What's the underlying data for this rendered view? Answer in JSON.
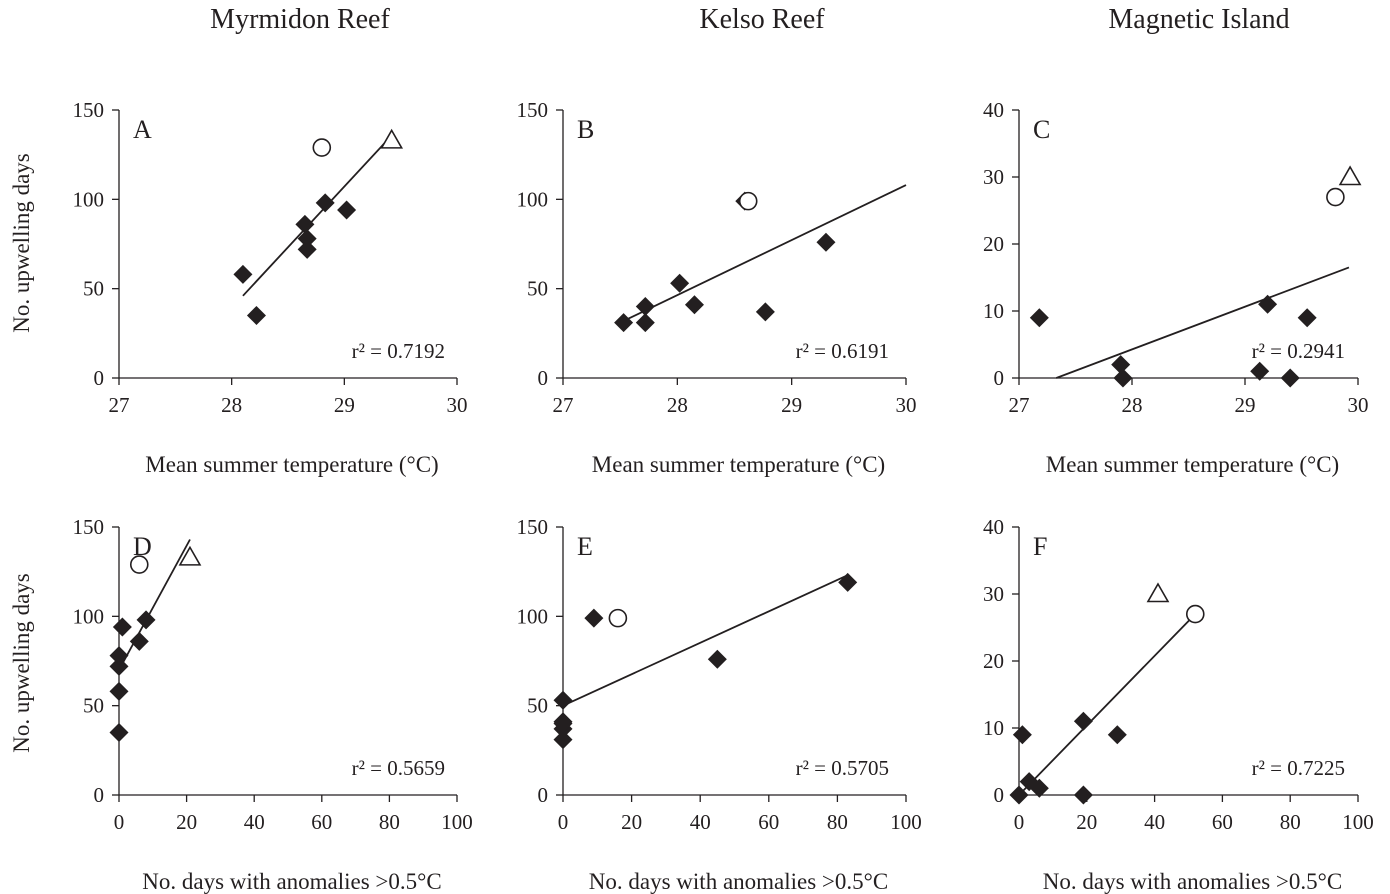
{
  "column_titles": [
    "Myrmidon Reef",
    "Kelso Reef",
    "Magnetic Island"
  ],
  "y_axis_label": "No. upwelling days",
  "chart_data": [
    {
      "type": "scatter",
      "panel": "A",
      "column": 0,
      "row": 0,
      "xlabel": "Mean summer  temperature (°C)",
      "xlim": [
        27,
        30
      ],
      "xticks": [
        27,
        28,
        29,
        30
      ],
      "ylim": [
        0,
        150
      ],
      "yticks": [
        0,
        50,
        100,
        150
      ],
      "r2_label": "r² = 0.7192",
      "points": [
        {
          "x": 28.1,
          "y": 58,
          "marker": "diamond"
        },
        {
          "x": 28.22,
          "y": 35,
          "marker": "diamond"
        },
        {
          "x": 28.65,
          "y": 86,
          "marker": "diamond"
        },
        {
          "x": 28.67,
          "y": 78,
          "marker": "diamond"
        },
        {
          "x": 28.67,
          "y": 72,
          "marker": "diamond"
        },
        {
          "x": 28.83,
          "y": 98,
          "marker": "diamond"
        },
        {
          "x": 29.02,
          "y": 94,
          "marker": "diamond"
        },
        {
          "x": 28.8,
          "y": 129,
          "marker": "circle"
        },
        {
          "x": 29.42,
          "y": 133,
          "marker": "triangle"
        }
      ],
      "fit": {
        "x1": 28.1,
        "y1": 46,
        "x2": 29.38,
        "y2": 133
      }
    },
    {
      "type": "scatter",
      "panel": "B",
      "column": 1,
      "row": 0,
      "xlabel": "Mean summer  temperature (°C)",
      "xlim": [
        27,
        30
      ],
      "xticks": [
        27,
        28,
        29,
        30
      ],
      "ylim": [
        0,
        150
      ],
      "yticks": [
        0,
        50,
        100,
        150
      ],
      "r2_label": "r² = 0.6191",
      "points": [
        {
          "x": 27.53,
          "y": 31,
          "marker": "diamond"
        },
        {
          "x": 27.72,
          "y": 31,
          "marker": "diamond"
        },
        {
          "x": 27.72,
          "y": 40,
          "marker": "diamond"
        },
        {
          "x": 28.02,
          "y": 53,
          "marker": "diamond"
        },
        {
          "x": 28.15,
          "y": 41,
          "marker": "diamond"
        },
        {
          "x": 28.59,
          "y": 99,
          "marker": "diamond"
        },
        {
          "x": 28.77,
          "y": 37,
          "marker": "diamond"
        },
        {
          "x": 29.3,
          "y": 76,
          "marker": "diamond"
        },
        {
          "x": 28.62,
          "y": 99,
          "marker": "circle"
        }
      ],
      "fit": {
        "x1": 27.5,
        "y1": 31,
        "x2": 30,
        "y2": 108
      }
    },
    {
      "type": "scatter",
      "panel": "C",
      "column": 2,
      "row": 0,
      "xlabel": "Mean summer  temperature (°C)",
      "xlim": [
        27,
        30
      ],
      "xticks": [
        27,
        28,
        29,
        30
      ],
      "ylim": [
        0,
        40
      ],
      "yticks": [
        0,
        10,
        20,
        30,
        40
      ],
      "r2_label": "r² = 0.2941",
      "points": [
        {
          "x": 27.18,
          "y": 9,
          "marker": "diamond"
        },
        {
          "x": 27.9,
          "y": 2,
          "marker": "diamond"
        },
        {
          "x": 27.92,
          "y": 0,
          "marker": "diamond"
        },
        {
          "x": 29.13,
          "y": 1,
          "marker": "diamond"
        },
        {
          "x": 29.2,
          "y": 11,
          "marker": "diamond"
        },
        {
          "x": 29.4,
          "y": 0,
          "marker": "diamond"
        },
        {
          "x": 29.55,
          "y": 9,
          "marker": "diamond"
        },
        {
          "x": 29.8,
          "y": 27,
          "marker": "circle"
        },
        {
          "x": 29.93,
          "y": 30,
          "marker": "triangle"
        }
      ],
      "fit": {
        "x1": 27.33,
        "y1": 0,
        "x2": 29.92,
        "y2": 16.5
      }
    },
    {
      "type": "scatter",
      "panel": "D",
      "column": 0,
      "row": 1,
      "xlabel": "No. days with  anomalies >0.5°C",
      "xlim": [
        0,
        100
      ],
      "xticks": [
        0,
        20,
        40,
        60,
        80,
        100
      ],
      "ylim": [
        0,
        150
      ],
      "yticks": [
        0,
        50,
        100,
        150
      ],
      "r2_label": "r² = 0.5659",
      "points": [
        {
          "x": 0,
          "y": 35,
          "marker": "diamond"
        },
        {
          "x": 0,
          "y": 58,
          "marker": "diamond"
        },
        {
          "x": 0,
          "y": 72,
          "marker": "diamond"
        },
        {
          "x": 0,
          "y": 78,
          "marker": "diamond"
        },
        {
          "x": 1,
          "y": 94,
          "marker": "diamond"
        },
        {
          "x": 6,
          "y": 86,
          "marker": "diamond"
        },
        {
          "x": 8,
          "y": 98,
          "marker": "diamond"
        },
        {
          "x": 6,
          "y": 129,
          "marker": "circle"
        },
        {
          "x": 21,
          "y": 133,
          "marker": "triangle"
        }
      ],
      "fit": {
        "x1": 0,
        "y1": 70,
        "x2": 21,
        "y2": 143
      }
    },
    {
      "type": "scatter",
      "panel": "E",
      "column": 1,
      "row": 1,
      "xlabel": "No. days with  anomalies >0.5°C",
      "xlim": [
        0,
        100
      ],
      "xticks": [
        0,
        20,
        40,
        60,
        80,
        100
      ],
      "ylim": [
        0,
        150
      ],
      "yticks": [
        0,
        50,
        100,
        150
      ],
      "r2_label": "r² = 0.5705",
      "points": [
        {
          "x": 0,
          "y": 31,
          "marker": "diamond"
        },
        {
          "x": 0,
          "y": 37,
          "marker": "diamond"
        },
        {
          "x": 0,
          "y": 40,
          "marker": "diamond"
        },
        {
          "x": 0,
          "y": 41,
          "marker": "diamond"
        },
        {
          "x": 0,
          "y": 53,
          "marker": "diamond"
        },
        {
          "x": 9,
          "y": 99,
          "marker": "diamond"
        },
        {
          "x": 45,
          "y": 76,
          "marker": "diamond"
        },
        {
          "x": 83,
          "y": 119,
          "marker": "diamond"
        },
        {
          "x": 16,
          "y": 99,
          "marker": "circle"
        }
      ],
      "fit": {
        "x1": 0,
        "y1": 50,
        "x2": 83,
        "y2": 123
      }
    },
    {
      "type": "scatter",
      "panel": "F",
      "column": 2,
      "row": 1,
      "xlabel": "No. days with anomalies >0.5°C",
      "xlim": [
        0,
        100
      ],
      "xticks": [
        0,
        20,
        40,
        60,
        80,
        100
      ],
      "ylim": [
        0,
        40
      ],
      "yticks": [
        0,
        10,
        20,
        30,
        40
      ],
      "r2_label": "r² = 0.7225",
      "points": [
        {
          "x": 0,
          "y": 0,
          "marker": "diamond"
        },
        {
          "x": 1,
          "y": 9,
          "marker": "diamond"
        },
        {
          "x": 3,
          "y": 2,
          "marker": "diamond"
        },
        {
          "x": 6,
          "y": 1,
          "marker": "diamond"
        },
        {
          "x": 19,
          "y": 11,
          "marker": "diamond"
        },
        {
          "x": 19,
          "y": 0,
          "marker": "diamond"
        },
        {
          "x": 29,
          "y": 9,
          "marker": "diamond"
        },
        {
          "x": 52,
          "y": 27,
          "marker": "circle"
        },
        {
          "x": 41,
          "y": 30,
          "marker": "triangle"
        }
      ],
      "fit": {
        "x1": 0,
        "y1": 0,
        "x2": 52,
        "y2": 27
      }
    }
  ]
}
